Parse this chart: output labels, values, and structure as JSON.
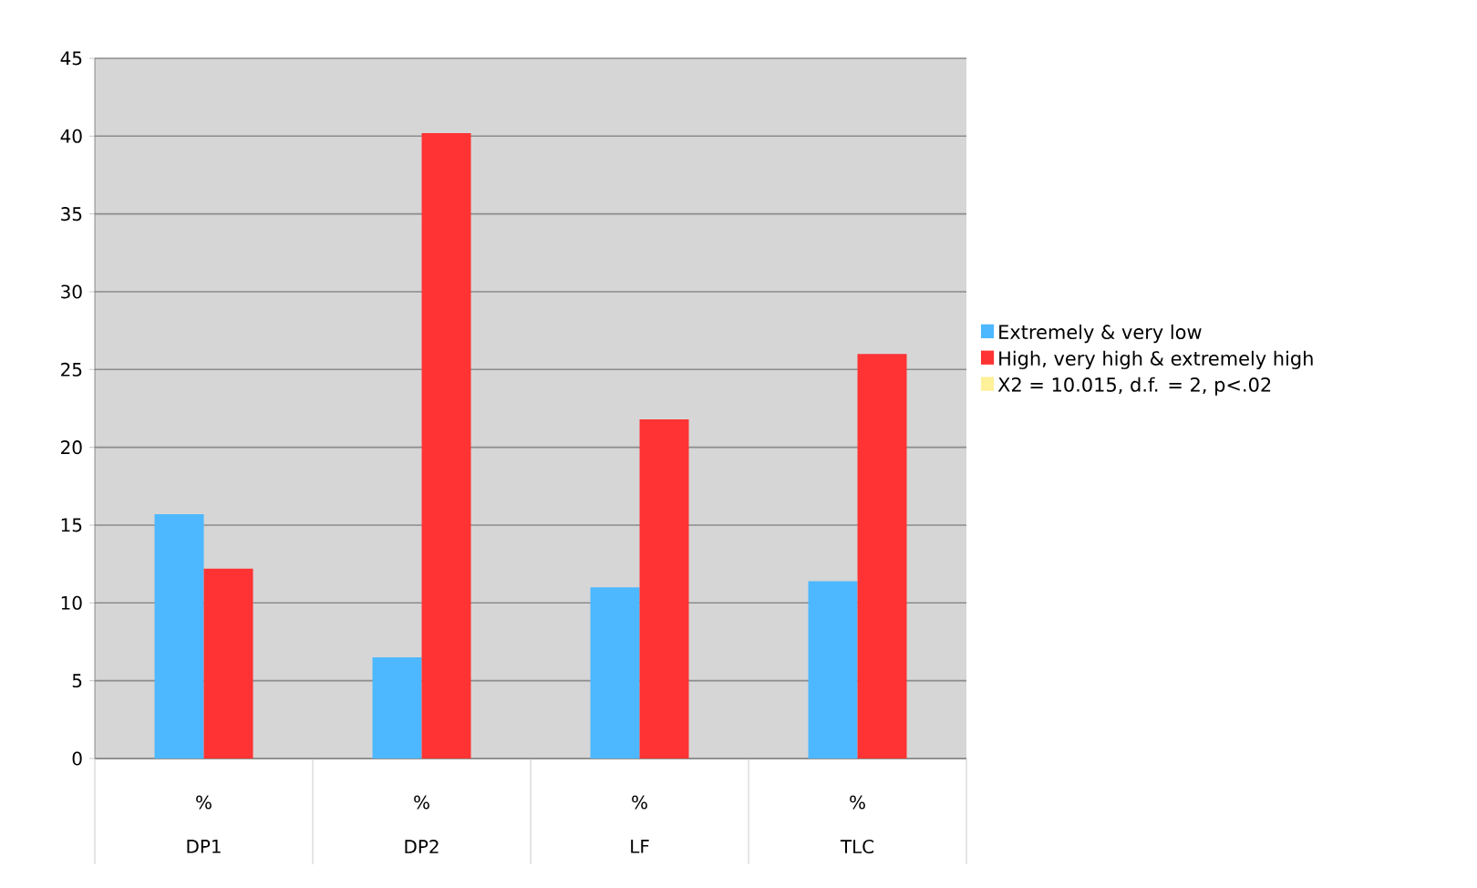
{
  "chart_data": {
    "type": "bar",
    "categories": [
      "DP1",
      "DP2",
      "LF",
      "TLC"
    ],
    "series": [
      {
        "name": "Extremely & very low",
        "color": "#4db8ff",
        "values": [
          15.7,
          6.5,
          11.0,
          11.4
        ]
      },
      {
        "name": "High, very high & extremely high",
        "color": "#ff3333",
        "values": [
          12.2,
          40.2,
          21.8,
          26.0
        ]
      },
      {
        "name": "X2 = 10.015, d.f. = 2, p<.02",
        "color": "#fff09a",
        "values": [
          null,
          null,
          null,
          null
        ]
      }
    ],
    "annotations": [
      "%",
      "%",
      "%",
      "%"
    ],
    "ylim": [
      0,
      45
    ],
    "yticks": [
      0,
      5,
      10,
      15,
      20,
      25,
      30,
      35,
      40,
      45
    ],
    "grid": "y",
    "legend": "right"
  }
}
